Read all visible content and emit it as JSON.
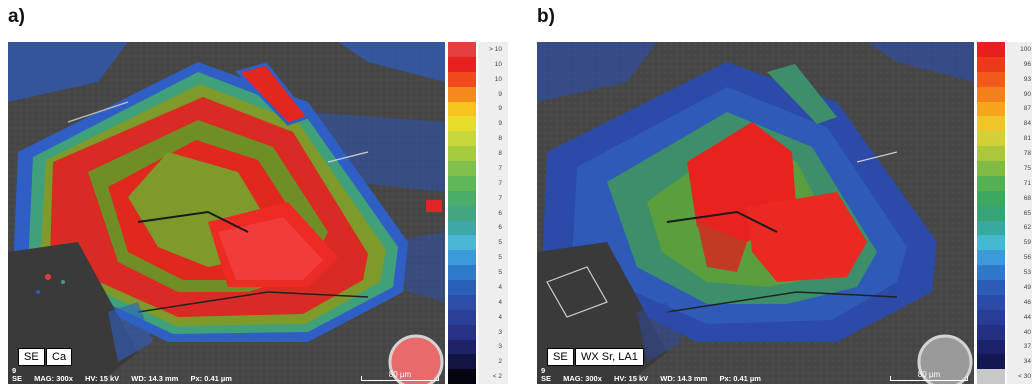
{
  "panels": [
    {
      "letter": "a)",
      "tags": [
        "SE",
        "Ca"
      ],
      "meta_index": "9",
      "meta": [
        "SE",
        "MAG: 300x",
        "HV: 15 kV",
        "WD: 14.3 mm",
        "Px: 0.41 µm"
      ],
      "scale_label": "80 µm",
      "ticks": [
        "> 10",
        "10",
        "10",
        "9",
        "9",
        "9",
        "8",
        "8",
        "7",
        "7",
        "7",
        "6",
        "6",
        "5",
        "5",
        "5",
        "4",
        "4",
        "4",
        "3",
        "3",
        "2",
        "< 2"
      ],
      "colors": [
        "#e63f3f",
        "#e82020",
        "#f14a1d",
        "#f38a1b",
        "#f7c31d",
        "#e9dd2b",
        "#c7d93a",
        "#a4cc3c",
        "#7fc04a",
        "#5fb75a",
        "#4aad6a",
        "#43a682",
        "#3ea7a7",
        "#4ab7d6",
        "#3b9bd8",
        "#2e7cc9",
        "#2a5fb8",
        "#2c4ea8",
        "#2a3f98",
        "#263284",
        "#1e2266",
        "#121544",
        "#05050f"
      ]
    },
    {
      "letter": "b)",
      "tags": [
        "SE",
        "WX Sr, LA1"
      ],
      "meta_index": "9",
      "meta": [
        "SE",
        "MAG: 300x",
        "HV: 15 kV",
        "WD: 14.3 mm",
        "Px: 0.41 µm"
      ],
      "scale_label": "80 µm",
      "ticks": [
        "100",
        "96",
        "93",
        "90",
        "87",
        "84",
        "81",
        "78",
        "75",
        "71",
        "68",
        "65",
        "62",
        "59",
        "56",
        "53",
        "49",
        "46",
        "44",
        "40",
        "37",
        "34",
        "< 30"
      ],
      "colors": [
        "#e81f1f",
        "#ec3a1c",
        "#f05a1a",
        "#f4801b",
        "#f6a51d",
        "#f0c52a",
        "#d3cf36",
        "#abc83d",
        "#7fbb45",
        "#55b052",
        "#3fa85f",
        "#36a477",
        "#38a9a0",
        "#44b9cf",
        "#3b9ad7",
        "#3178c8",
        "#2b5db7",
        "#2a4ca6",
        "#283d95",
        "#243082",
        "#1c226a",
        "#141852",
        "#c8c8c8"
      ]
    }
  ]
}
